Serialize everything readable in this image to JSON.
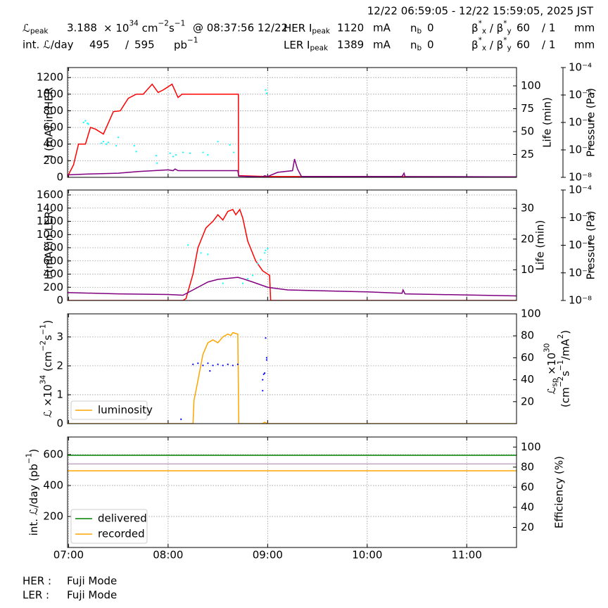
{
  "header": {
    "range": "12/22 06:59:05 - 12/22 15:59:05, 2025 JST",
    "rows": [
      [
        [
          {
            "text": "ℒ"
          },
          {
            "text": "peak",
            "pos": "sub"
          }
        ],
        "3.188",
        [
          {
            "text": "× 10"
          },
          {
            "text": "34",
            "pos": "sup"
          },
          {
            "text": " cm"
          },
          {
            "text": "−2",
            "pos": "sup"
          },
          {
            "text": "s"
          },
          {
            "text": "−1",
            "pos": "sup"
          }
        ],
        "@ 08:37:56 12/22",
        [
          {
            "text": "HER I"
          },
          {
            "text": "peak",
            "pos": "sub"
          }
        ],
        "1120",
        "mA",
        [
          {
            "text": "n"
          },
          {
            "text": "b",
            "pos": "sub"
          }
        ],
        "0",
        [
          {
            "text": "β"
          },
          {
            "text": "*",
            "pos": "sup"
          },
          {
            "text": "x",
            "pos": "sub"
          },
          {
            "text": " / β"
          },
          {
            "text": "*",
            "pos": "sup"
          },
          {
            "text": "y",
            "pos": "sub"
          }
        ],
        "60",
        "/ 1",
        "mm"
      ],
      [
        "int. ℒ/day",
        "495",
        "/",
        "595",
        [
          {
            "text": "pb"
          },
          {
            "text": "−1",
            "pos": "sup"
          }
        ],
        [
          {
            "text": "LER I"
          },
          {
            "text": "peak",
            "pos": "sub"
          }
        ],
        "1389",
        "mA",
        [
          {
            "text": "n"
          },
          {
            "text": "b",
            "pos": "sub"
          }
        ],
        "0",
        [
          {
            "text": "β"
          },
          {
            "text": "*",
            "pos": "sup"
          },
          {
            "text": "x",
            "pos": "sub"
          },
          {
            "text": " / β"
          },
          {
            "text": "*",
            "pos": "sup"
          },
          {
            "text": "y",
            "pos": "sub"
          }
        ],
        "60",
        "/ 1",
        "mm"
      ]
    ]
  },
  "footer": [
    [
      "HER :",
      "Fuji Mode"
    ],
    [
      "LER :",
      "Fuji Mode"
    ]
  ],
  "chart_data": [
    {
      "type": "line",
      "ylabel": "I (mA) in HER",
      "y2label": "Life (min)",
      "y3label": "Pressure (Pa)",
      "xlim": [
        6.99,
        11.5
      ],
      "xticks": [
        7,
        8,
        9,
        10,
        11
      ],
      "ylim": [
        0,
        1320
      ],
      "yticks": [
        0,
        200,
        400,
        600,
        800,
        1000,
        1200
      ],
      "y2lim": [
        0,
        120
      ],
      "y2ticks": [
        25,
        50,
        75,
        100
      ],
      "y3lim": [
        1e-08,
        0.0001
      ],
      "y3log": true,
      "y3ticks": [
        {
          "value": 1e-08,
          "label": "10⁻⁸"
        },
        {
          "value": 1e-07,
          "label": "10⁻⁷"
        },
        {
          "value": 1e-06,
          "label": "10⁻⁶"
        },
        {
          "value": 1e-05,
          "label": "10⁻⁵"
        },
        {
          "value": 0.0001,
          "label": "10⁻⁴"
        }
      ],
      "grid": true,
      "series": [
        {
          "color": "#ff0000",
          "x": [
            6.99,
            7.05,
            7.1,
            7.17,
            7.22,
            7.27,
            7.35,
            7.45,
            7.52,
            7.6,
            7.68,
            7.75,
            7.84,
            7.9,
            7.95,
            8.04,
            8.1,
            8.14,
            8.5,
            8.706,
            8.707,
            9.0,
            11.5
          ],
          "values": [
            10,
            150,
            400,
            400,
            600,
            580,
            520,
            790,
            800,
            950,
            1000,
            1000,
            1120,
            1020,
            1050,
            1120,
            960,
            1000,
            1000,
            1000,
            20,
            10,
            5
          ]
        },
        {
          "color": "#800080",
          "x": [
            6.99,
            7.2,
            7.5,
            7.7,
            8.0,
            8.05,
            8.07,
            8.1,
            8.7,
            8.71,
            8.95,
            8.97,
            9.0,
            9.1,
            9.25,
            9.27,
            9.3,
            9.34,
            10.35,
            10.37,
            10.38,
            11.5
          ],
          "values": [
            30,
            40,
            50,
            70,
            90,
            80,
            100,
            80,
            80,
            15,
            5,
            20,
            10,
            60,
            80,
            220,
            100,
            10,
            10,
            50,
            10,
            5
          ]
        },
        {
          "type": "scatter",
          "color": "#00ffff",
          "x": [
            7.15,
            7.17,
            7.19,
            7.2,
            7.33,
            7.35,
            7.38,
            7.4,
            7.48,
            7.5,
            7.66,
            7.68,
            7.88,
            7.89,
            8.02,
            8.05,
            8.08,
            8.15,
            8.22,
            8.35,
            8.4,
            8.5,
            8.62,
            8.66,
            8.98,
            8.99
          ],
          "values": [
            660,
            680,
            650,
            640,
            410,
            430,
            400,
            420,
            380,
            480,
            380,
            310,
            260,
            170,
            290,
            250,
            270,
            300,
            290,
            300,
            270,
            430,
            390,
            300,
            1050,
            1010
          ]
        }
      ]
    },
    {
      "type": "line",
      "ylabel": "I (mA) in LER",
      "y2label": "Life (min)",
      "y3label": "Pressure (Pa)",
      "xlim": [
        6.99,
        11.5
      ],
      "xticks": [
        7,
        8,
        9,
        10,
        11
      ],
      "ylim": [
        0,
        1675
      ],
      "yticks": [
        0,
        200,
        400,
        600,
        800,
        1000,
        1200,
        1400,
        1600
      ],
      "y2lim": [
        0,
        36
      ],
      "y2ticks": [
        10,
        20,
        30
      ],
      "y3lim": [
        1e-08,
        0.0001
      ],
      "y3log": true,
      "y3ticks": [
        {
          "value": 1e-08,
          "label": "10⁻⁸"
        },
        {
          "value": 1e-07,
          "label": "10⁻⁷"
        },
        {
          "value": 1e-06,
          "label": "10⁻⁶"
        },
        {
          "value": 1e-05,
          "label": "10⁻⁵"
        },
        {
          "value": 0.0001,
          "label": "10⁻⁴"
        }
      ],
      "grid": true,
      "series": [
        {
          "color": "#ff0000",
          "x": [
            6.99,
            8.15,
            8.18,
            8.25,
            8.3,
            8.38,
            8.45,
            8.5,
            8.55,
            8.6,
            8.65,
            8.68,
            8.72,
            8.75,
            8.8,
            8.88,
            8.95,
            9.02,
            9.03,
            11.5
          ],
          "values": [
            0,
            0,
            30,
            400,
            800,
            1100,
            1200,
            1300,
            1220,
            1350,
            1380,
            1300,
            1380,
            1250,
            900,
            600,
            450,
            380,
            0,
            0
          ]
        },
        {
          "color": "#800080",
          "x": [
            6.99,
            7.5,
            8.0,
            8.15,
            8.3,
            8.4,
            8.5,
            8.7,
            8.75,
            8.85,
            9.0,
            9.2,
            10.0,
            10.35,
            10.36,
            10.38,
            11.5
          ],
          "values": [
            120,
            100,
            90,
            80,
            200,
            280,
            320,
            350,
            330,
            280,
            200,
            160,
            130,
            110,
            160,
            100,
            70
          ]
        },
        {
          "type": "scatter",
          "color": "#00ffff",
          "x": [
            8.2,
            8.33,
            8.4,
            8.55,
            8.75,
            8.8,
            8.85,
            8.9,
            8.93,
            8.97,
            8.98,
            9.0
          ],
          "values": [
            840,
            720,
            700,
            260,
            260,
            330,
            380,
            560,
            620,
            720,
            760,
            790
          ]
        }
      ]
    },
    {
      "type": "line",
      "ylabel": [
        {
          "text": "ℒ ×10"
        },
        {
          "text": "34",
          "pos": "sup"
        },
        {
          "text": " (cm"
        },
        {
          "text": "−2",
          "pos": "sup"
        },
        {
          "text": "s"
        },
        {
          "text": "−1",
          "pos": "sup"
        },
        {
          "text": ")"
        }
      ],
      "y2label": [
        {
          "text": "ℒ"
        },
        {
          "text": "sp",
          "pos": "sub"
        },
        {
          "text": " ×10"
        },
        {
          "text": "30",
          "pos": "sup"
        },
        {
          "text": "(cm",
          "pos": "line"
        },
        {
          "text": "−2",
          "pos": "sup"
        },
        {
          "text": "s"
        },
        {
          "text": "−1",
          "pos": "sup"
        },
        {
          "text": "/mA"
        },
        {
          "text": "2",
          "pos": "sup"
        },
        {
          "text": ")"
        }
      ],
      "xlim": [
        6.99,
        11.5
      ],
      "xticks": [
        7,
        8,
        9,
        10,
        11
      ],
      "ylim": [
        0,
        3.8
      ],
      "yticks": [
        0,
        1,
        2,
        3
      ],
      "y2lim": [
        0,
        100
      ],
      "y2ticks": [
        20,
        40,
        60,
        80,
        100
      ],
      "grid": true,
      "legend": "lower left",
      "series": [
        {
          "name": "luminosity",
          "color": "#ffa500",
          "x": [
            6.99,
            8.25,
            8.26,
            8.3,
            8.35,
            8.4,
            8.45,
            8.5,
            8.55,
            8.6,
            8.63,
            8.65,
            8.7,
            8.71,
            8.95,
            8.97,
            9.0,
            11.5
          ],
          "values": [
            0,
            0,
            0.8,
            1.5,
            2.4,
            2.8,
            2.9,
            2.8,
            3.0,
            3.1,
            3.05,
            3.15,
            3.1,
            0,
            0,
            0.05,
            0,
            0
          ]
        },
        {
          "type": "scatter",
          "axis": "y2",
          "color": "#0000ff",
          "x": [
            8.13,
            8.25,
            8.3,
            8.35,
            8.4,
            8.42,
            8.45,
            8.5,
            8.55,
            8.6,
            8.65,
            8.7,
            8.95,
            8.95,
            8.96,
            8.97,
            8.98,
            8.99,
            8.99
          ],
          "values": [
            4,
            54,
            55,
            53,
            55,
            48,
            53,
            54,
            53,
            54,
            53,
            54,
            30,
            40,
            45,
            46,
            78,
            60,
            58
          ]
        }
      ]
    },
    {
      "type": "line",
      "ylabel": [
        {
          "text": "int. ℒ/day (pb"
        },
        {
          "text": "−1",
          "pos": "sup"
        },
        {
          "text": ")"
        }
      ],
      "y2label": "Efficiency (%)",
      "xlim": [
        6.99,
        11.5
      ],
      "xticks": [
        {
          "value": 7,
          "label": "07:00"
        },
        {
          "value": 8,
          "label": "08:00"
        },
        {
          "value": 9,
          "label": "09:00"
        },
        {
          "value": 10,
          "label": "10:00"
        },
        {
          "value": 11,
          "label": "11:00"
        }
      ],
      "ylim": [
        0,
        713
      ],
      "yticks": [
        200,
        400,
        600
      ],
      "y2lim": [
        0,
        110
      ],
      "y2ticks": [
        20,
        40,
        60,
        80,
        100
      ],
      "grid": true,
      "legend": "lower left",
      "series": [
        {
          "name": "delivered",
          "color": "#008000",
          "x": [
            6.99,
            11.5
          ],
          "values": [
            595,
            595
          ]
        },
        {
          "name": "recorded",
          "color": "#ffa500",
          "x": [
            6.99,
            11.5
          ],
          "values": [
            495,
            495
          ]
        },
        {
          "axis": "y2",
          "color": "#c0a8c0",
          "x": [
            6.99,
            11.5
          ],
          "values": [
            83.2,
            83.2
          ]
        }
      ]
    }
  ]
}
